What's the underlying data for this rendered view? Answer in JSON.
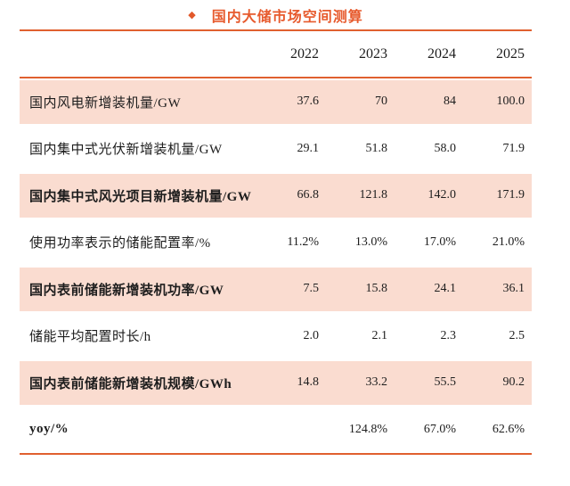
{
  "header": {
    "bullet": "◆",
    "title": "国内大储市场空间测算"
  },
  "chart_data": {
    "type": "table",
    "title": "国内大储市场空间测算",
    "years": [
      "2022",
      "2023",
      "2024",
      "2025"
    ],
    "rows": [
      {
        "label": "国内风电新增装机量/GW",
        "values": [
          "37.6",
          "70",
          "84",
          "100.0"
        ],
        "bold": false,
        "shaded": true
      },
      {
        "label": "国内集中式光伏新增装机量/GW",
        "values": [
          "29.1",
          "51.8",
          "58.0",
          "71.9"
        ],
        "bold": false,
        "shaded": false
      },
      {
        "label": "国内集中式风光项目新增装机量/GW",
        "values": [
          "66.8",
          "121.8",
          "142.0",
          "171.9"
        ],
        "bold": true,
        "shaded": true
      },
      {
        "label": "使用功率表示的储能配置率/%",
        "values": [
          "11.2%",
          "13.0%",
          "17.0%",
          "21.0%"
        ],
        "bold": false,
        "shaded": false
      },
      {
        "label": "国内表前储能新增装机功率/GW",
        "values": [
          "7.5",
          "15.8",
          "24.1",
          "36.1"
        ],
        "bold": true,
        "shaded": true
      },
      {
        "label": "储能平均配置时长/h",
        "values": [
          "2.0",
          "2.1",
          "2.3",
          "2.5"
        ],
        "bold": false,
        "shaded": false
      },
      {
        "label": "国内表前储能新增装机规模/GWh",
        "values": [
          "14.8",
          "33.2",
          "55.5",
          "90.2"
        ],
        "bold": true,
        "shaded": true
      },
      {
        "label": "yoy/%",
        "values": [
          "",
          "124.8%",
          "67.0%",
          "62.6%"
        ],
        "bold": true,
        "shaded": false
      }
    ]
  },
  "colors": {
    "accent_line": "#E0602F",
    "title_text": "#E75A2D",
    "row_shade": "#FADCD0",
    "body_text": "#1d1d1d"
  }
}
